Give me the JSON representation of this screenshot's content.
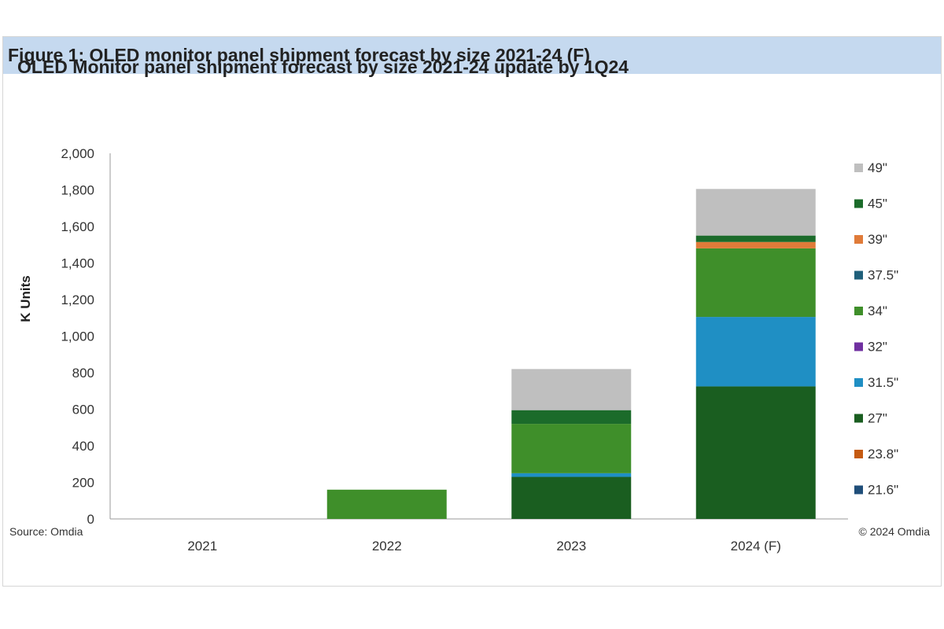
{
  "figure": {
    "header": "Figure 1: OLED monitor panel shipment forecast by size 2021-24 (F)",
    "source": "Source: Omdia",
    "copyright": "© 2024 Omdia"
  },
  "chart_data": {
    "type": "bar",
    "stacked": true,
    "title": "OLED Monitor panel shipment forecast by size 2021-24 update by 1Q24",
    "xlabel": "",
    "ylabel": "K Units",
    "ylim": [
      0,
      2000
    ],
    "yticks": [
      "0",
      "200",
      "400",
      "600",
      "800",
      "1,000",
      "1,200",
      "1,400",
      "1,600",
      "1,800",
      "2,000"
    ],
    "categories": [
      "2021",
      "2022",
      "2023",
      "2024 (F)"
    ],
    "legend_position": "right",
    "series": [
      {
        "name": "21.6\"",
        "color": "#1f4e79",
        "values": [
          0,
          0,
          0,
          0
        ]
      },
      {
        "name": "23.8\"",
        "color": "#c55a11",
        "values": [
          0,
          0,
          0,
          0
        ]
      },
      {
        "name": "27\"",
        "color": "#1a5e20",
        "values": [
          0,
          0,
          230,
          725
        ]
      },
      {
        "name": "31.5\"",
        "color": "#1f8fc4",
        "values": [
          0,
          0,
          20,
          380
        ]
      },
      {
        "name": "32\"",
        "color": "#7030a0",
        "values": [
          0,
          0,
          0,
          0
        ]
      },
      {
        "name": "34\"",
        "color": "#3f8f2a",
        "values": [
          0,
          160,
          270,
          375
        ]
      },
      {
        "name": "37.5\"",
        "color": "#1f5f7a",
        "values": [
          0,
          0,
          0,
          0
        ]
      },
      {
        "name": "39\"",
        "color": "#e07b39",
        "values": [
          0,
          0,
          0,
          35
        ]
      },
      {
        "name": "45\"",
        "color": "#1b6b2a",
        "values": [
          0,
          0,
          75,
          35
        ]
      },
      {
        "name": "49\"",
        "color": "#bfbfbf",
        "values": [
          0,
          0,
          225,
          255
        ]
      }
    ]
  }
}
